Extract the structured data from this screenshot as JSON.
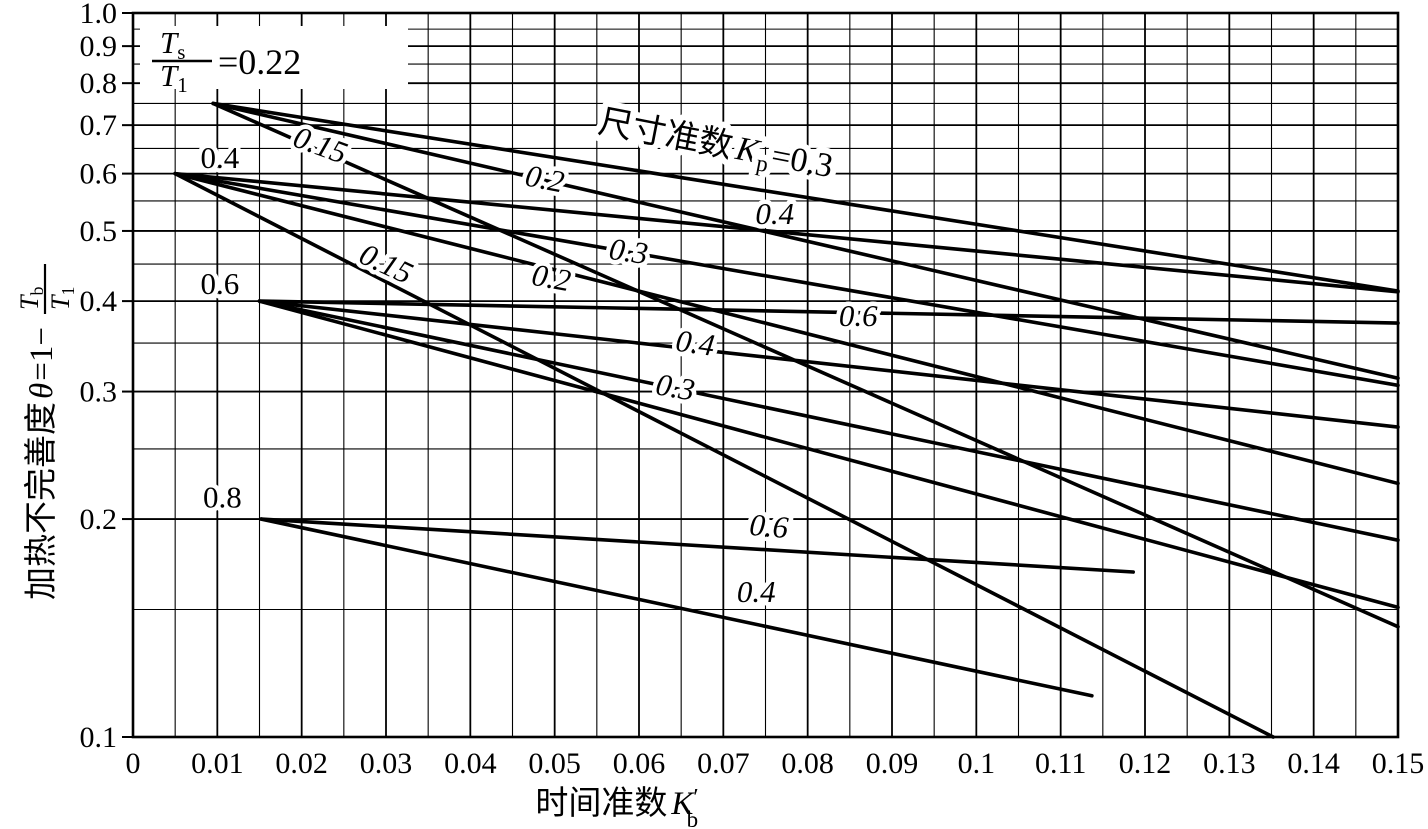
{
  "page": {
    "background": "#ffffff",
    "ink": "#000000"
  },
  "corner_annotation": {
    "frac_num_sym": "T",
    "frac_num_sub": "s",
    "frac_den_sym": "T",
    "frac_den_sub": "1",
    "equals_text": "=0.22"
  },
  "y_axis": {
    "title_prefix": "加热不完善度",
    "title_theta": "θ",
    "title_equals": "=1−",
    "frac_num_sym": "T",
    "frac_num_sub": "b",
    "frac_den_sym": "T",
    "frac_den_sub": "1",
    "ticks": [
      {
        "v": 1.0,
        "label": "1.0"
      },
      {
        "v": 0.9,
        "label": "0.9"
      },
      {
        "v": 0.8,
        "label": "0.8"
      },
      {
        "v": 0.7,
        "label": "0.7"
      },
      {
        "v": 0.6,
        "label": "0.6"
      },
      {
        "v": 0.5,
        "label": "0.5"
      },
      {
        "v": 0.4,
        "label": "0.4"
      },
      {
        "v": 0.3,
        "label": "0.3"
      },
      {
        "v": 0.2,
        "label": "0.2"
      },
      {
        "v": 0.1,
        "label": "0.1"
      }
    ]
  },
  "x_axis": {
    "title_prefix": "时间准数",
    "title_sym": "K",
    "title_prime": "′",
    "title_sub": "b",
    "ticks": [
      {
        "v": 0,
        "label": "0"
      },
      {
        "v": 0.01,
        "label": "0.01"
      },
      {
        "v": 0.02,
        "label": "0.02"
      },
      {
        "v": 0.03,
        "label": "0.03"
      },
      {
        "v": 0.04,
        "label": "0.04"
      },
      {
        "v": 0.05,
        "label": "0.05"
      },
      {
        "v": 0.06,
        "label": "0.06"
      },
      {
        "v": 0.07,
        "label": "0.07"
      },
      {
        "v": 0.08,
        "label": "0.08"
      },
      {
        "v": 0.09,
        "label": "0.09"
      },
      {
        "v": 0.1,
        "label": "0.1"
      },
      {
        "v": 0.11,
        "label": "0.11"
      },
      {
        "v": 0.12,
        "label": "0.12"
      },
      {
        "v": 0.13,
        "label": "0.13"
      },
      {
        "v": 0.14,
        "label": "0.14"
      },
      {
        "v": 0.15,
        "label": "0.15"
      }
    ]
  },
  "chart_data": {
    "type": "line",
    "title": "",
    "xlabel": "时间准数K′b",
    "ylabel": "加热不完善度θ=1−Tb/T1",
    "x_range": [
      0,
      0.15
    ],
    "y_range": [
      0.1,
      1.0
    ],
    "y_scale": "log",
    "grid": "on",
    "x_grid_step": 0.005,
    "y_grid_step": 0.05,
    "kp_heading": {
      "text_cn": "尺寸准数",
      "sym": "K",
      "sub": "p",
      "equals": "=0.3",
      "x": 0.055,
      "v": 0.685,
      "rot": 11
    },
    "series": [
      {
        "ts_t1": 0.22,
        "kp": 0.3,
        "points": [
          [
            0.0095,
            0.75
          ],
          [
            0.15,
            0.413
          ]
        ]
      },
      {
        "ts_t1": 0.22,
        "kp": 0.2,
        "points": [
          [
            0.0095,
            0.75
          ],
          [
            0.15,
            0.313
          ]
        ]
      },
      {
        "ts_t1": 0.22,
        "kp": 0.15,
        "points": [
          [
            0.0095,
            0.75
          ],
          [
            0.15,
            0.142
          ]
        ]
      },
      {
        "ts_t1": 0.4,
        "kp": 0.4,
        "points": [
          [
            0.005,
            0.6
          ],
          [
            0.15,
            0.412
          ]
        ]
      },
      {
        "ts_t1": 0.4,
        "kp": 0.3,
        "points": [
          [
            0.005,
            0.6
          ],
          [
            0.15,
            0.306
          ]
        ]
      },
      {
        "ts_t1": 0.4,
        "kp": 0.2,
        "points": [
          [
            0.005,
            0.6
          ],
          [
            0.15,
            0.224
          ]
        ]
      },
      {
        "ts_t1": 0.4,
        "kp": 0.15,
        "points": [
          [
            0.005,
            0.6
          ],
          [
            0.1352,
            0.1
          ]
        ]
      },
      {
        "ts_t1": 0.6,
        "kp": 0.6,
        "points": [
          [
            0.015,
            0.4
          ],
          [
            0.15,
            0.373
          ]
        ]
      },
      {
        "ts_t1": 0.6,
        "kp": 0.4,
        "points": [
          [
            0.015,
            0.4
          ],
          [
            0.15,
            0.268
          ]
        ]
      },
      {
        "ts_t1": 0.6,
        "kp": 0.3,
        "points": [
          [
            0.015,
            0.4
          ],
          [
            0.15,
            0.187
          ]
        ]
      },
      {
        "ts_t1": 0.6,
        "kp": 0.2,
        "points": [
          [
            0.015,
            0.4
          ],
          [
            0.15,
            0.151
          ]
        ]
      },
      {
        "ts_t1": 0.8,
        "kp": 0.6,
        "points": [
          [
            0.0152,
            0.2
          ],
          [
            0.1186,
            0.169
          ]
        ]
      },
      {
        "ts_t1": 0.8,
        "kp": 0.4,
        "points": [
          [
            0.0152,
            0.2
          ],
          [
            0.1137,
            0.114
          ]
        ]
      }
    ],
    "line_labels": [
      {
        "text": "0.15",
        "x": 0.0218,
        "v": 0.66,
        "rot": 20
      },
      {
        "text": "0.2",
        "x": 0.0486,
        "v": 0.592,
        "rot": 11
      },
      {
        "text": "0.4",
        "x": 0.0761,
        "v": 0.529,
        "rot": 0
      },
      {
        "text": "0.3",
        "x": 0.0586,
        "v": 0.47,
        "rot": 8
      },
      {
        "text": "0.2",
        "x": 0.0494,
        "v": 0.432,
        "rot": 10
      },
      {
        "text": "0.15",
        "x": 0.0295,
        "v": 0.453,
        "rot": 25
      },
      {
        "text": "0.6",
        "x": 0.086,
        "v": 0.383,
        "rot": 0
      },
      {
        "text": "0.4",
        "x": 0.0665,
        "v": 0.351,
        "rot": 8
      },
      {
        "text": "0.3",
        "x": 0.0641,
        "v": 0.305,
        "rot": 10
      },
      {
        "text": "0.6",
        "x": 0.0753,
        "v": 0.196,
        "rot": 5
      },
      {
        "text": "0.4",
        "x": 0.0739,
        "v": 0.159,
        "rot": 0
      }
    ],
    "family_labels": [
      {
        "text": "0.4",
        "x": 0.0103,
        "v": 0.633
      },
      {
        "text": "0.6",
        "x": 0.0103,
        "v": 0.424
      },
      {
        "text": "0.8",
        "x": 0.0106,
        "v": 0.215
      }
    ]
  }
}
